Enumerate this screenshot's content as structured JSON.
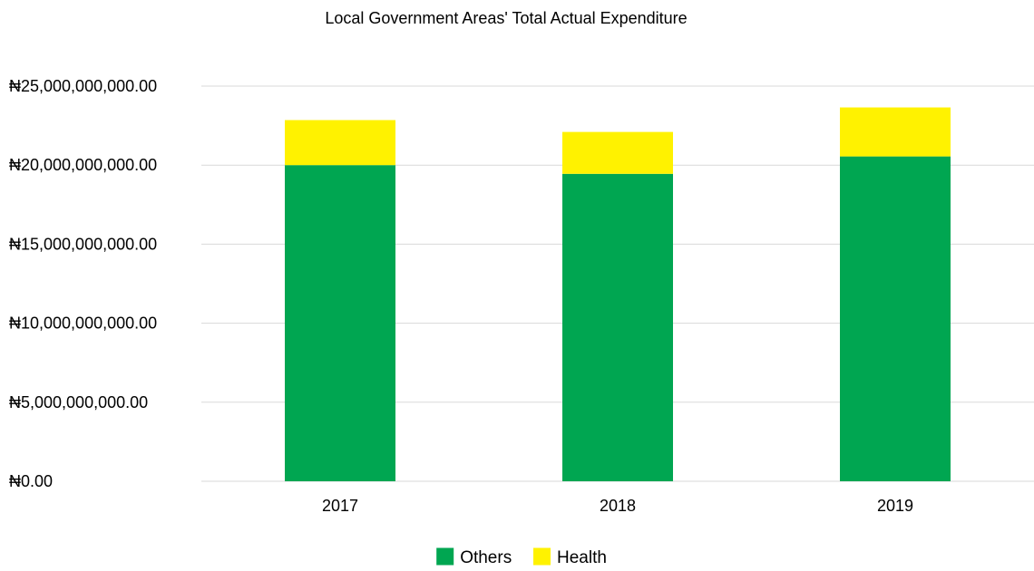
{
  "chart_data": {
    "type": "bar",
    "stacked": true,
    "title": "Local Government Areas' Total Actual Expenditure",
    "xlabel": "",
    "ylabel": "",
    "categories": [
      "2017",
      "2018",
      "2019"
    ],
    "series": [
      {
        "name": "Others",
        "color": "#00a651",
        "values": [
          20000000000,
          19450000000,
          20550000000
        ]
      },
      {
        "name": "Health",
        "color": "#fff200",
        "values": [
          2850000000,
          2650000000,
          3100000000
        ]
      }
    ],
    "ylim": [
      0,
      25000000000
    ],
    "yticks": [
      0,
      5000000000,
      10000000000,
      15000000000,
      20000000000,
      25000000000
    ],
    "ytick_labels": [
      "₦0.00",
      "₦5,000,000,000.00",
      "₦10,000,000,000.00",
      "₦15,000,000,000.00",
      "₦20,000,000,000.00",
      "₦25,000,000,000.00"
    ],
    "grid": true,
    "legend_position": "bottom"
  }
}
